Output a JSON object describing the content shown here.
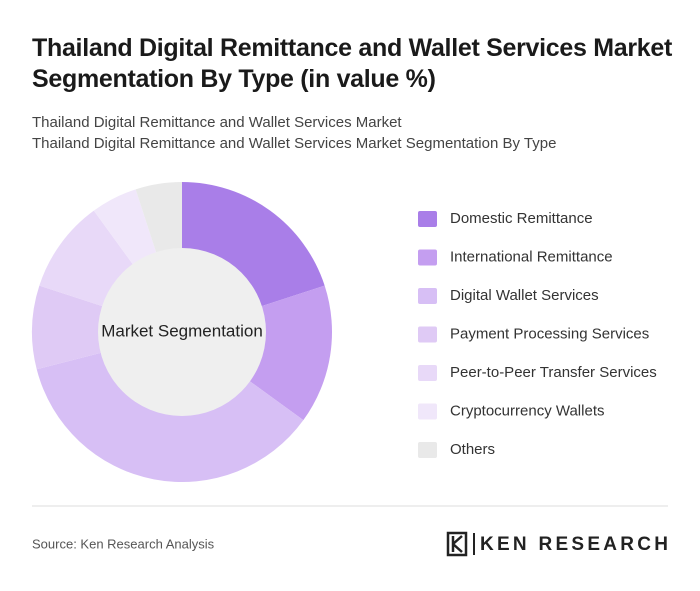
{
  "chart_data": {
    "type": "donut",
    "title": "Thailand Digital Remittance and Wallet Services Market Segmentation By Type (in value %)",
    "subtitle": [
      "Thailand Digital Remittance and Wallet Services Market",
      "Thailand Digital Remittance and Wallet Services Market Segmentation By Type"
    ],
    "center_label": "Market Segmentation",
    "categories": [
      "Domestic Remittance",
      "International Remittance",
      "Digital Wallet Services",
      "Payment Processing Services",
      "Peer-to-Peer Transfer Services",
      "Cryptocurrency Wallets",
      "Others"
    ],
    "values": [
      20,
      15,
      36,
      9,
      10,
      5,
      5
    ],
    "colors": [
      "#a97ee8",
      "#c49ef0",
      "#d7bff5",
      "#dfcaf5",
      "#e8d9f8",
      "#f0e7fa",
      "#e9e9e9"
    ],
    "source": "Source: Ken Research Analysis",
    "brand": "KEN RESEARCH"
  }
}
